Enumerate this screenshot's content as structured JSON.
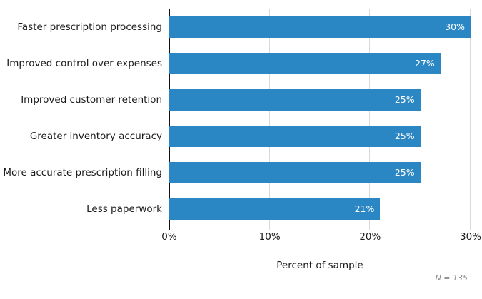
{
  "chart_data": {
    "type": "bar",
    "orientation": "horizontal",
    "title": "",
    "categories": [
      "Faster prescription processing",
      "Improved control over expenses",
      "Improved customer retention",
      "Greater inventory accuracy",
      "More accurate prescription filling",
      "Less paperwork"
    ],
    "values": [
      30,
      27,
      25,
      25,
      25,
      21
    ],
    "value_labels": [
      "30%",
      "27%",
      "25%",
      "25%",
      "25%",
      "21%"
    ],
    "xlabel": "Percent of sample",
    "ylabel": "",
    "x_ticks": [
      "0%",
      "10%",
      "20%",
      "30%"
    ],
    "tick_values": [
      0,
      10,
      20,
      30
    ],
    "xlim": [
      0,
      30
    ],
    "grid": "vertical-gridlines at 10, 20, 30",
    "legend": "none",
    "note": "N = 135",
    "colors": {
      "bar": "#2b87c4",
      "bar_value_text": "#ffffff",
      "gridline": "#d9d9d9",
      "axis_spine": "#111111",
      "text": "#1a1a1a",
      "note_text": "#85898d",
      "background": "#ffffff"
    }
  }
}
